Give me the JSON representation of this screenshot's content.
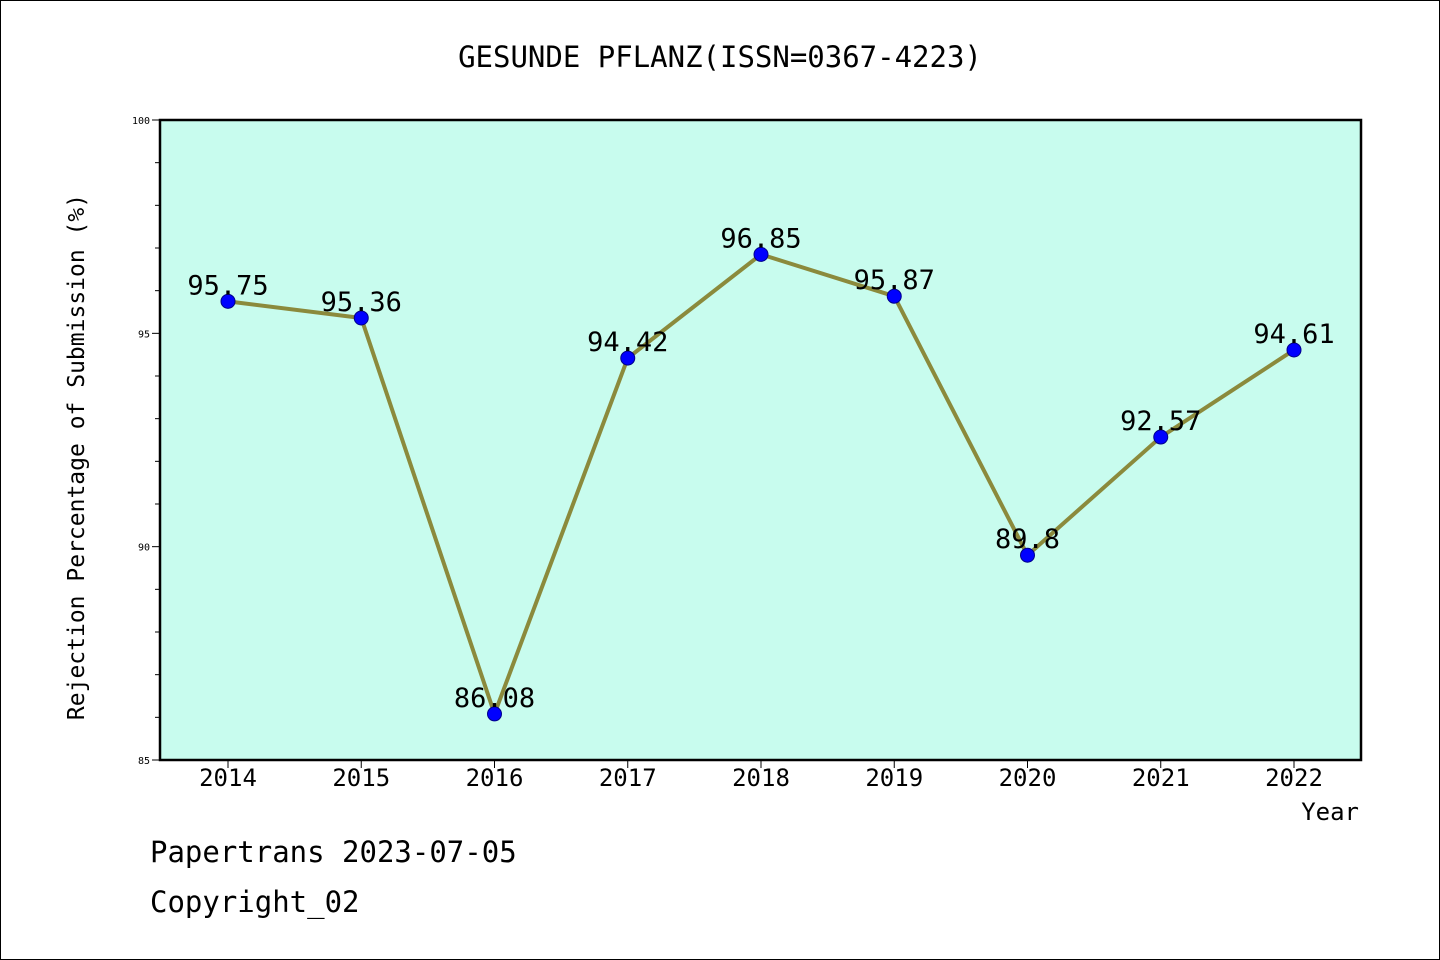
{
  "chart_data": {
    "type": "line",
    "title": "GESUNDE PFLANZ(ISSN=0367-4223)",
    "xlabel": "Year",
    "ylabel": "Rejection Percentage of Submission (%)",
    "categories": [
      "2014",
      "2015",
      "2016",
      "2017",
      "2018",
      "2019",
      "2020",
      "2021",
      "2022"
    ],
    "values": [
      95.75,
      95.36,
      86.08,
      94.42,
      96.85,
      95.87,
      89.8,
      92.57,
      94.61
    ],
    "data_labels": [
      "95.75",
      "95.36",
      "86.08",
      "94.42",
      "96.85",
      "95.87",
      "89.8",
      "92.57",
      "94.61"
    ],
    "ylim": [
      85,
      100
    ],
    "yticks": [
      85,
      90,
      95,
      100
    ],
    "ytick_labels": [
      "85",
      "90",
      "95",
      "100"
    ],
    "grid": false,
    "plot_background": "#c8fcee",
    "line_color": "#8b8a3c",
    "marker_color": "#0000ff"
  },
  "footer": {
    "line1": "Papertrans 2023-07-05",
    "line2": "Copyright_02"
  }
}
